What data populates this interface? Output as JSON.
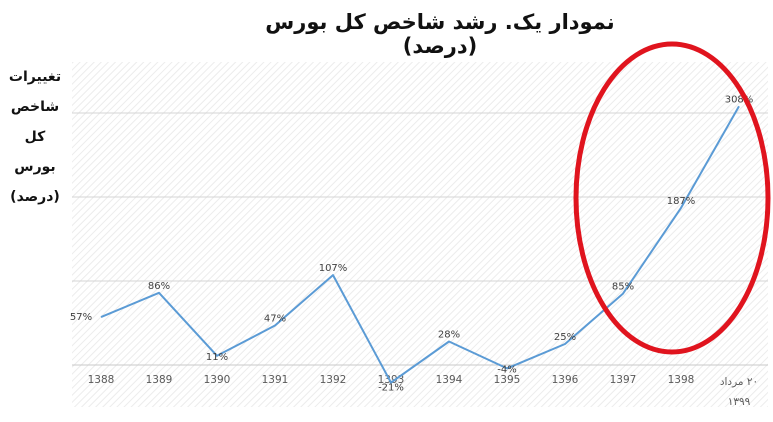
{
  "chart_data": {
    "type": "line",
    "title": "نمودار یک. رشد شاخص کل بورس (درصد)",
    "ylabel": "تغییرات شاخص کل بورس (درصد)",
    "xlabel": "",
    "categories": [
      "1388",
      "1389",
      "1390",
      "1391",
      "1392",
      "1393",
      "1394",
      "1395",
      "1396",
      "1397",
      "1398",
      "۲۰ مرداد ۱۳۹۹"
    ],
    "series": [
      {
        "values": [
          57,
          86,
          11,
          47,
          107,
          -21,
          28,
          -4,
          25,
          85,
          187,
          308
        ],
        "labels": [
          "57%",
          "86%",
          "11%",
          "47%",
          "107%",
          "-21%",
          "28%",
          "-4%",
          "25%",
          "85%",
          "187%",
          "308%"
        ],
        "color": "#5b9bd5"
      }
    ],
    "ylim": [
      -20,
      330
    ],
    "grid": true,
    "legend": "none",
    "annotation": {
      "shape": "ellipse",
      "color": "#e0141e",
      "around": [
        "1397",
        "1398",
        "۲۰ مرداد ۱۳۹۹"
      ]
    }
  }
}
